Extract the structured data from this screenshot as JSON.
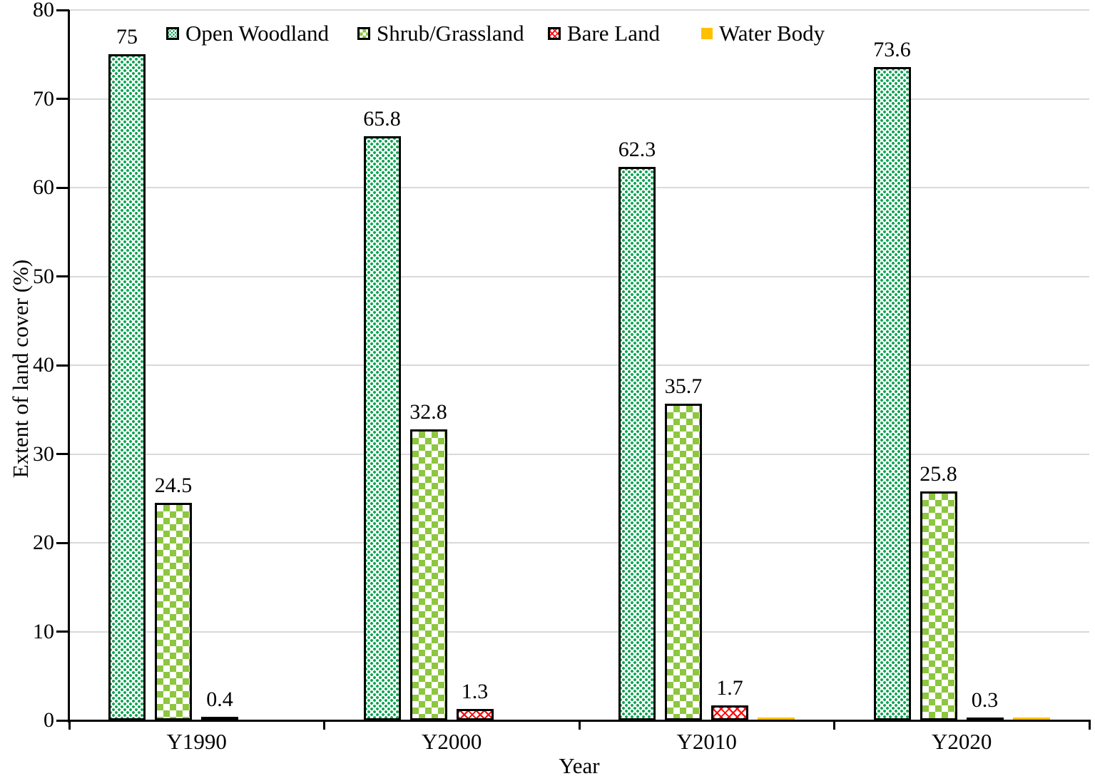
{
  "colors": {
    "woodland": "#0aa350",
    "shrub": "#8dc63f",
    "bareland": "#ff0000",
    "water": "#ffc000",
    "grid": "#d9d9d9",
    "axis": "#000000"
  },
  "chart_data": {
    "type": "bar",
    "title": "",
    "xlabel": "Year",
    "ylabel": "Extent of land cover (%)",
    "ylim": [
      0,
      80
    ],
    "yticks": [
      0,
      10,
      20,
      30,
      40,
      50,
      60,
      70,
      80
    ],
    "grid": true,
    "legend_position": "top",
    "categories": [
      "Y1990",
      "Y2000",
      "Y2010",
      "Y2020"
    ],
    "series": [
      {
        "name": "Open Woodland",
        "pattern": "green-dots",
        "color": "#0aa350",
        "values": [
          75,
          65.8,
          62.3,
          73.6
        ],
        "labels": [
          "75",
          "65.8",
          "62.3",
          "73.6"
        ]
      },
      {
        "name": "Shrub/Grassland",
        "pattern": "green-checkerboard",
        "color": "#8dc63f",
        "values": [
          24.5,
          32.8,
          35.7,
          25.8
        ],
        "labels": [
          "24.5",
          "32.8",
          "35.7",
          "25.8"
        ]
      },
      {
        "name": "Bare Land",
        "pattern": "red-crosshatch",
        "color": "#ff0000",
        "values": [
          0.4,
          1.3,
          1.7,
          0.3
        ],
        "labels": [
          "0.4",
          "1.3",
          "1.7",
          "0.3"
        ]
      },
      {
        "name": "Water Body",
        "pattern": "solid-yellow",
        "color": "#ffc000",
        "values": [
          0,
          0,
          0.3,
          0.3
        ],
        "labels": [
          null,
          null,
          null,
          null
        ]
      }
    ]
  }
}
